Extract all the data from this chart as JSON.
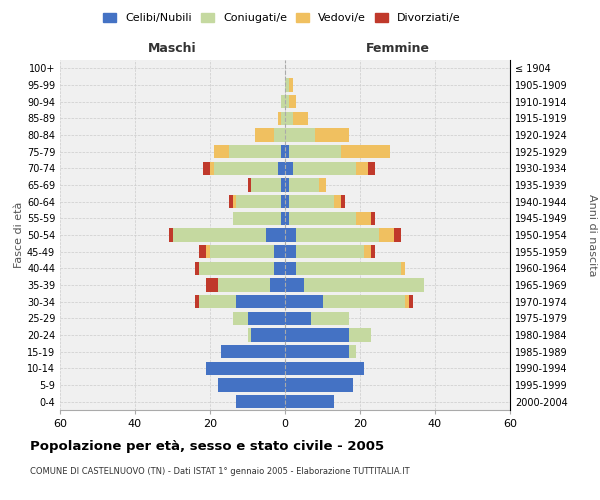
{
  "age_groups": [
    "0-4",
    "5-9",
    "10-14",
    "15-19",
    "20-24",
    "25-29",
    "30-34",
    "35-39",
    "40-44",
    "45-49",
    "50-54",
    "55-59",
    "60-64",
    "65-69",
    "70-74",
    "75-79",
    "80-84",
    "85-89",
    "90-94",
    "95-99",
    "100+"
  ],
  "birth_years": [
    "2000-2004",
    "1995-1999",
    "1990-1994",
    "1985-1989",
    "1980-1984",
    "1975-1979",
    "1970-1974",
    "1965-1969",
    "1960-1964",
    "1955-1959",
    "1950-1954",
    "1945-1949",
    "1940-1944",
    "1935-1939",
    "1930-1934",
    "1925-1929",
    "1920-1924",
    "1915-1919",
    "1910-1914",
    "1905-1909",
    "≤ 1904"
  ],
  "male": {
    "celibe": [
      13,
      18,
      21,
      17,
      9,
      10,
      13,
      4,
      3,
      3,
      5,
      1,
      1,
      1,
      2,
      1,
      0,
      0,
      0,
      0,
      0
    ],
    "coniugato": [
      0,
      0,
      0,
      0,
      1,
      4,
      10,
      14,
      20,
      17,
      25,
      13,
      12,
      8,
      17,
      14,
      3,
      1,
      1,
      0,
      0
    ],
    "vedovo": [
      0,
      0,
      0,
      0,
      0,
      0,
      0,
      0,
      0,
      1,
      0,
      0,
      1,
      0,
      1,
      4,
      5,
      1,
      0,
      0,
      0
    ],
    "divorziato": [
      0,
      0,
      0,
      0,
      0,
      0,
      1,
      3,
      1,
      2,
      1,
      0,
      1,
      1,
      2,
      0,
      0,
      0,
      0,
      0,
      0
    ]
  },
  "female": {
    "nubile": [
      13,
      18,
      21,
      17,
      17,
      7,
      10,
      5,
      3,
      3,
      3,
      1,
      1,
      1,
      2,
      1,
      0,
      0,
      0,
      0,
      0
    ],
    "coniugata": [
      0,
      0,
      0,
      2,
      6,
      10,
      22,
      32,
      28,
      18,
      22,
      18,
      12,
      8,
      17,
      14,
      8,
      2,
      1,
      1,
      0
    ],
    "vedova": [
      0,
      0,
      0,
      0,
      0,
      0,
      1,
      0,
      1,
      2,
      4,
      4,
      2,
      2,
      3,
      13,
      9,
      4,
      2,
      1,
      0
    ],
    "divorziata": [
      0,
      0,
      0,
      0,
      0,
      0,
      1,
      0,
      0,
      1,
      2,
      1,
      1,
      0,
      2,
      0,
      0,
      0,
      0,
      0,
      0
    ]
  },
  "colors": {
    "celibe": "#4472c4",
    "coniugato": "#c5d9a0",
    "vedovo": "#f0c060",
    "divorziato": "#c0392b"
  },
  "xlim": 60,
  "title": "Popolazione per età, sesso e stato civile - 2005",
  "subtitle": "COMUNE DI CASTELNUOVO (TN) - Dati ISTAT 1° gennaio 2005 - Elaborazione TUTTITALIA.IT",
  "ylabel_left": "Fasce di età",
  "ylabel_right": "Anni di nascita",
  "xlabel_left": "Maschi",
  "xlabel_right": "Femmine",
  "legend_labels": [
    "Celibi/Nubili",
    "Coniugati/e",
    "Vedovi/e",
    "Divorziati/e"
  ],
  "bg_color": "#f0f0f0",
  "grid_color": "#cccccc"
}
